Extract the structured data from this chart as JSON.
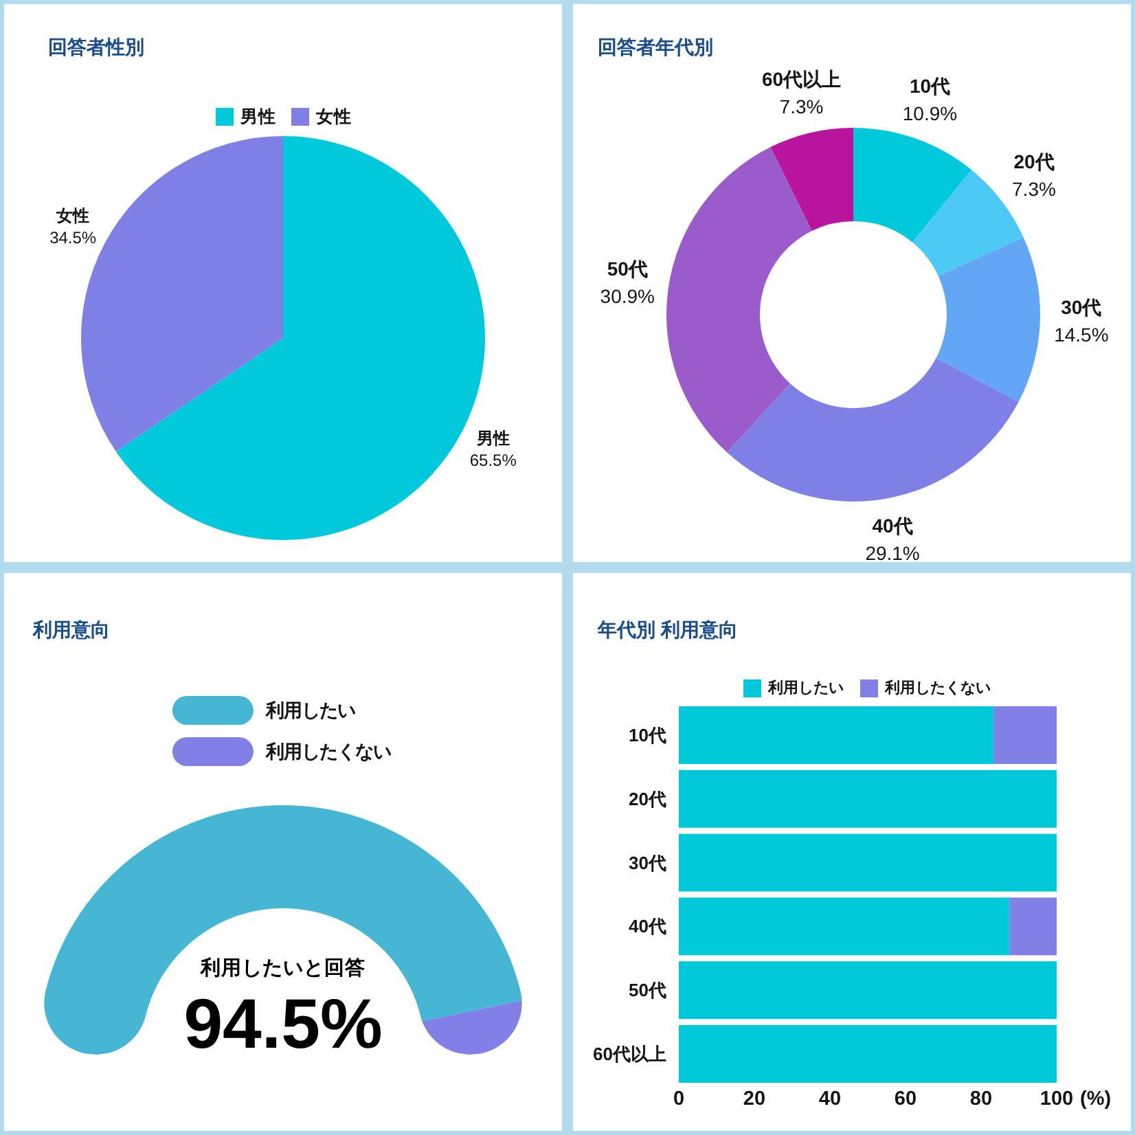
{
  "chart_data": [
    {
      "type": "pie",
      "title": "回答者性別",
      "categories": [
        "男性",
        "女性"
      ],
      "values": [
        65.5,
        34.5
      ],
      "colors": [
        "#00c9db",
        "#7f80e6"
      ],
      "value_labels": [
        "65.5%",
        "34.5%"
      ],
      "legend": "top"
    },
    {
      "type": "donut",
      "title": "回答者年代別",
      "categories": [
        "10代",
        "20代",
        "30代",
        "40代",
        "50代",
        "60代以上"
      ],
      "values": [
        10.9,
        7.3,
        14.5,
        29.1,
        30.9,
        7.3
      ],
      "colors": [
        "#00c9dc",
        "#4cc9f5",
        "#62a7f5",
        "#7f80e6",
        "#9b5bcb",
        "#b9149e"
      ],
      "value_labels": [
        "10.9%",
        "7.3%",
        "14.5%",
        "29.1%",
        "30.9%",
        "7.3%"
      ]
    },
    {
      "type": "donut",
      "title": "利用意向",
      "categories": [
        "利用したい",
        "利用したくない"
      ],
      "values": [
        94.5,
        5.5
      ],
      "colors": [
        "#45b6d4",
        "#8080e6"
      ],
      "value_labels": [
        "94.5%",
        null
      ],
      "legend": "top",
      "annotations": [
        "利用したいと回答"
      ]
    },
    {
      "type": "bar",
      "orientation": "horizontal",
      "stacked": true,
      "title": "年代別 利用意向",
      "categories": [
        "10代",
        "20代",
        "30代",
        "40代",
        "50代",
        "60代以上"
      ],
      "series": [
        {
          "name": "利用したい",
          "color": "#00c9d9",
          "values": [
            83.3,
            100,
            100,
            87.5,
            100,
            100
          ]
        },
        {
          "name": "利用したくない",
          "color": "#8080e6",
          "values": [
            16.7,
            0,
            0,
            12.5,
            0,
            0
          ]
        }
      ],
      "xlim": [
        0,
        100
      ],
      "xticks": [
        0,
        20,
        40,
        60,
        80,
        100
      ],
      "xlabel": "(%)",
      "legend": "top"
    }
  ]
}
